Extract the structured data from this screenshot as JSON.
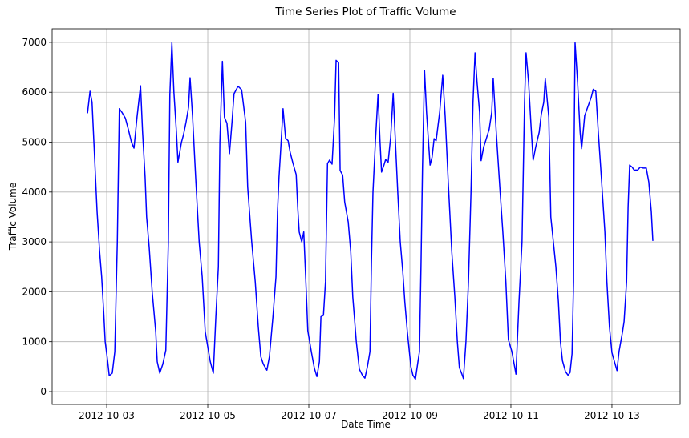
{
  "chart_data": {
    "type": "line",
    "title": "Time Series Plot of Traffic Volume",
    "x_label": "Date Time",
    "y_label": "Traffic Volume",
    "color": "#0000ff",
    "grid": true,
    "xlim": [
      1.92,
      14.35
    ],
    "xticks": [
      {
        "value": 3,
        "label": "2012-10-03"
      },
      {
        "value": 5,
        "label": "2012-10-05"
      },
      {
        "value": 7,
        "label": "2012-10-07"
      },
      {
        "value": 9,
        "label": "2012-10-09"
      },
      {
        "value": 11,
        "label": "2012-10-11"
      },
      {
        "value": 13,
        "label": "2012-10-13"
      }
    ],
    "ylim": [
      -257,
      7272
    ],
    "yticks": [
      0,
      1000,
      2000,
      3000,
      4000,
      5000,
      6000,
      7000
    ],
    "x": [
      2.62,
      2.67,
      2.71,
      2.76,
      2.81,
      2.86,
      2.9,
      2.94,
      2.97,
      3.02,
      3.05,
      3.11,
      3.16,
      3.21,
      3.25,
      3.3,
      3.37,
      3.43,
      3.49,
      3.54,
      3.6,
      3.67,
      3.71,
      3.76,
      3.79,
      3.84,
      3.9,
      3.97,
      4.0,
      4.05,
      4.11,
      4.17,
      4.22,
      4.25,
      4.29,
      4.33,
      4.38,
      4.41,
      4.48,
      4.52,
      4.57,
      4.62,
      4.65,
      4.7,
      4.76,
      4.83,
      4.89,
      4.95,
      5.05,
      5.11,
      5.16,
      5.21,
      5.24,
      5.29,
      5.33,
      5.38,
      5.43,
      5.48,
      5.52,
      5.6,
      5.67,
      5.75,
      5.79,
      5.87,
      5.94,
      6.0,
      6.05,
      6.1,
      6.17,
      6.22,
      6.29,
      6.35,
      6.38,
      6.41,
      6.44,
      6.49,
      6.54,
      6.59,
      6.63,
      6.68,
      6.75,
      6.78,
      6.81,
      6.86,
      6.9,
      6.95,
      6.98,
      7.05,
      7.11,
      7.16,
      7.21,
      7.24,
      7.29,
      7.33,
      7.37,
      7.41,
      7.46,
      7.51,
      7.54,
      7.59,
      7.62,
      7.67,
      7.71,
      7.78,
      7.83,
      7.87,
      7.94,
      8.0,
      8.06,
      8.11,
      8.16,
      8.21,
      8.24,
      8.27,
      8.32,
      8.37,
      8.41,
      8.44,
      8.49,
      8.52,
      8.57,
      8.62,
      8.67,
      8.71,
      8.76,
      8.81,
      8.86,
      8.9,
      8.95,
      9.02,
      9.06,
      9.11,
      9.16,
      9.19,
      9.22,
      9.25,
      9.29,
      9.33,
      9.4,
      9.44,
      9.48,
      9.52,
      9.59,
      9.65,
      9.7,
      9.76,
      9.83,
      9.89,
      9.94,
      9.98,
      10.03,
      10.06,
      10.11,
      10.16,
      10.21,
      10.25,
      10.29,
      10.33,
      10.38,
      10.41,
      10.46,
      10.51,
      10.57,
      10.62,
      10.65,
      10.71,
      10.78,
      10.84,
      10.9,
      10.95,
      11.02,
      11.1,
      11.16,
      11.22,
      11.27,
      11.3,
      11.35,
      11.4,
      11.44,
      11.49,
      11.56,
      11.6,
      11.65,
      11.68,
      11.75,
      11.79,
      11.84,
      11.89,
      11.94,
      11.98,
      12.02,
      12.08,
      12.13,
      12.17,
      12.21,
      12.24,
      12.25,
      12.27,
      12.32,
      12.37,
      12.4,
      12.46,
      12.52,
      12.59,
      12.63,
      12.68,
      12.73,
      12.79,
      12.86,
      12.9,
      12.95,
      13.0,
      13.05,
      13.1,
      13.14,
      13.21,
      13.24,
      13.29,
      13.32,
      13.35,
      13.4,
      13.44,
      13.51,
      13.56,
      13.62,
      13.68,
      13.73,
      13.78,
      13.81
    ],
    "values": [
      5580,
      6020,
      5800,
      4700,
      3600,
      2800,
      2300,
      1600,
      1000,
      600,
      320,
      370,
      800,
      3000,
      5670,
      5600,
      5480,
      5250,
      5000,
      4880,
      5500,
      6130,
      5200,
      4300,
      3500,
      2900,
      2000,
      1200,
      600,
      370,
      550,
      830,
      3000,
      5950,
      6990,
      6000,
      5200,
      4600,
      5000,
      5150,
      5400,
      5700,
      6290,
      5500,
      4300,
      3000,
      2300,
      1200,
      600,
      370,
      1500,
      2500,
      5000,
      6620,
      5500,
      5380,
      4770,
      5400,
      5970,
      6120,
      6050,
      5400,
      4100,
      3000,
      2200,
      1300,
      700,
      550,
      430,
      700,
      1500,
      2300,
      3600,
      4300,
      4800,
      5670,
      5080,
      5030,
      4800,
      4600,
      4350,
      3700,
      3200,
      3000,
      3200,
      2000,
      1220,
      800,
      470,
      300,
      600,
      1500,
      1530,
      2200,
      4570,
      4640,
      4560,
      5500,
      6640,
      6590,
      4430,
      4340,
      3800,
      3400,
      2800,
      1900,
      1000,
      450,
      330,
      270,
      500,
      800,
      2600,
      4000,
      5050,
      5960,
      5000,
      4400,
      4550,
      4650,
      4600,
      5100,
      5980,
      5100,
      4000,
      3000,
      2400,
      1800,
      1200,
      500,
      330,
      250,
      600,
      800,
      2500,
      4500,
      6440,
      5600,
      4540,
      4700,
      5070,
      5030,
      5600,
      6340,
      5500,
      4200,
      2800,
      1900,
      1000,
      480,
      350,
      260,
      1000,
      2200,
      4000,
      5800,
      6790,
      6200,
      5600,
      4630,
      4900,
      5060,
      5260,
      5600,
      6280,
      5200,
      4100,
      3200,
      2200,
      1040,
      800,
      350,
      1800,
      3000,
      5800,
      6790,
      6200,
      5300,
      4640,
      4900,
      5200,
      5550,
      5800,
      6270,
      5500,
      3500,
      3000,
      2500,
      1800,
      1000,
      620,
      400,
      330,
      380,
      760,
      2200,
      4800,
      6990,
      6200,
      5200,
      4870,
      5530,
      5700,
      5900,
      6060,
      6020,
      5200,
      4300,
      3200,
      2200,
      1300,
      780,
      600,
      420,
      800,
      1200,
      1400,
      2200,
      3700,
      4540,
      4500,
      4440,
      4440,
      4500,
      4480,
      4480,
      4200,
      3600,
      3020
    ]
  }
}
